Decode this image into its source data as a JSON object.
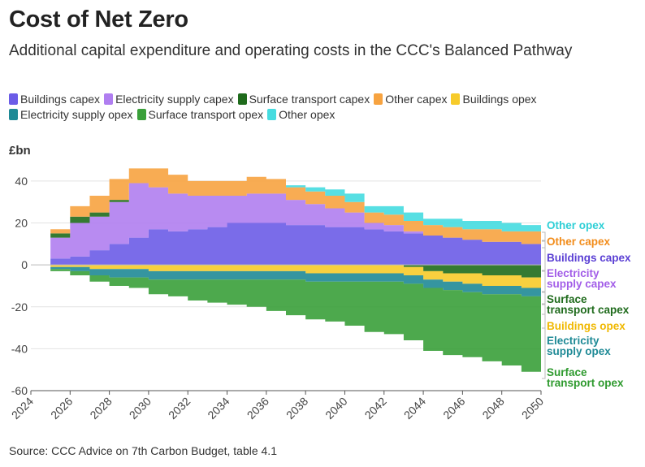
{
  "chart_data": {
    "type": "area",
    "subtype": "stacked-step",
    "title": "Cost of Net Zero",
    "subtitle": "Additional capital expenditure and operating costs in the CCC's Balanced Pathway",
    "ylabel": "£bn",
    "xlabel": "",
    "source": "Source: CCC Advice on 7th Carbon Budget, table 4.1",
    "xlim": [
      2024,
      2050
    ],
    "ylim": [
      -60,
      45
    ],
    "xticks": [
      2024,
      2026,
      2028,
      2030,
      2032,
      2034,
      2036,
      2038,
      2040,
      2042,
      2044,
      2046,
      2048,
      2050
    ],
    "yticks": [
      -60,
      -40,
      -20,
      0,
      20,
      40
    ],
    "years": [
      2025,
      2026,
      2027,
      2028,
      2029,
      2030,
      2031,
      2032,
      2033,
      2034,
      2035,
      2036,
      2037,
      2038,
      2039,
      2040,
      2041,
      2042,
      2043,
      2044,
      2045,
      2046,
      2047,
      2048,
      2049
    ],
    "legend": [
      {
        "name": "Buildings capex",
        "color": "#6b5ce7"
      },
      {
        "name": "Electricity supply capex",
        "color": "#b07ef0"
      },
      {
        "name": "Surface transport capex",
        "color": "#1f6b1c"
      },
      {
        "name": "Other capex",
        "color": "#f7a340"
      },
      {
        "name": "Buildings opex",
        "color": "#f7cb2a"
      },
      {
        "name": "Electricity supply opex",
        "color": "#1f8a96"
      },
      {
        "name": "Surface transport opex",
        "color": "#3aa03a"
      },
      {
        "name": "Other opex",
        "color": "#45dce0"
      }
    ],
    "positive_series": [
      {
        "name": "Buildings capex",
        "color": "#6b5ce7",
        "values": [
          3,
          4,
          7,
          10,
          13,
          17,
          16,
          17,
          18,
          20,
          20,
          20,
          19,
          19,
          18,
          18,
          17,
          16,
          15,
          14,
          13,
          12,
          11,
          11,
          10
        ]
      },
      {
        "name": "Electricity supply capex",
        "color": "#b07ef0",
        "values": [
          10,
          16,
          16,
          20,
          26,
          20,
          18,
          16,
          15,
          13,
          14,
          14,
          12,
          10,
          9,
          7,
          3,
          3,
          1,
          0,
          0,
          0,
          0,
          0,
          0
        ]
      },
      {
        "name": "Surface transport capex",
        "color": "#1f6b1c",
        "values": [
          2,
          3,
          2,
          1,
          0,
          0,
          0,
          0,
          0,
          0,
          0,
          0,
          0,
          0,
          0,
          0,
          0,
          0,
          0,
          0,
          0,
          0,
          0,
          0,
          0
        ]
      },
      {
        "name": "Other capex",
        "color": "#f7a340",
        "values": [
          2,
          5,
          8,
          10,
          7,
          9,
          9,
          7,
          7,
          7,
          8,
          7,
          6,
          6,
          6,
          5,
          5,
          5,
          5,
          5,
          5,
          5,
          6,
          5,
          6
        ]
      },
      {
        "name": "Other opex",
        "color": "#45dce0",
        "values": [
          0,
          0,
          0,
          0,
          0,
          0,
          0,
          0,
          0,
          0,
          0,
          0,
          1,
          2,
          3,
          4,
          3,
          4,
          4,
          3,
          4,
          4,
          4,
          4,
          3
        ]
      }
    ],
    "negative_series": [
      {
        "name": "Surface transport capex",
        "color": "#1f6b1c",
        "values": [
          0,
          0,
          0,
          0,
          0,
          0,
          0,
          0,
          0,
          0,
          0,
          0,
          0,
          0,
          0,
          0,
          0,
          0,
          -1,
          -3,
          -4,
          -4,
          -5,
          -5,
          -6
        ]
      },
      {
        "name": "Buildings opex",
        "color": "#f7cb2a",
        "values": [
          -1,
          -1,
          -2,
          -2,
          -2,
          -3,
          -3,
          -3,
          -3,
          -3,
          -3,
          -3,
          -3,
          -4,
          -4,
          -4,
          -4,
          -4,
          -4,
          -4,
          -4,
          -5,
          -5,
          -5,
          -5
        ]
      },
      {
        "name": "Electricity supply opex",
        "color": "#1f8a96",
        "values": [
          -1,
          -2,
          -3,
          -4,
          -4,
          -4,
          -4,
          -4,
          -4,
          -4,
          -4,
          -4,
          -4,
          -4,
          -4,
          -4,
          -4,
          -4,
          -4,
          -4,
          -4,
          -4,
          -4,
          -4,
          -4
        ]
      },
      {
        "name": "Surface transport opex",
        "color": "#3aa03a",
        "values": [
          -1,
          -2,
          -3,
          -4,
          -5,
          -7,
          -8,
          -10,
          -11,
          -12,
          -13,
          -15,
          -17,
          -18,
          -19,
          -21,
          -24,
          -25,
          -27,
          -30,
          -31,
          -31,
          -32,
          -34,
          -36
        ]
      }
    ],
    "end_labels": [
      {
        "series": "Other opex",
        "lines": [
          "Other opex"
        ],
        "color": "#2ecfd6"
      },
      {
        "series": "Other capex",
        "lines": [
          "Other capex"
        ],
        "color": "#f28c1a"
      },
      {
        "series": "Buildings capex",
        "lines": [
          "Buildings capex"
        ],
        "color": "#5a3fd4"
      },
      {
        "series": "Electricity supply capex",
        "lines": [
          "Electricity",
          "supply capex"
        ],
        "color": "#a25de8"
      },
      {
        "series": "Surface transport capex",
        "lines": [
          "Surface",
          "transport capex"
        ],
        "color": "#1f6b1c"
      },
      {
        "series": "Buildings opex",
        "lines": [
          "Buildings opex"
        ],
        "color": "#f0b800"
      },
      {
        "series": "Electricity supply opex",
        "lines": [
          "Electricity",
          "supply opex"
        ],
        "color": "#1f8a96"
      },
      {
        "series": "Surface transport opex",
        "lines": [
          "Surface",
          "transport opex"
        ],
        "color": "#2e9a2e"
      }
    ]
  }
}
